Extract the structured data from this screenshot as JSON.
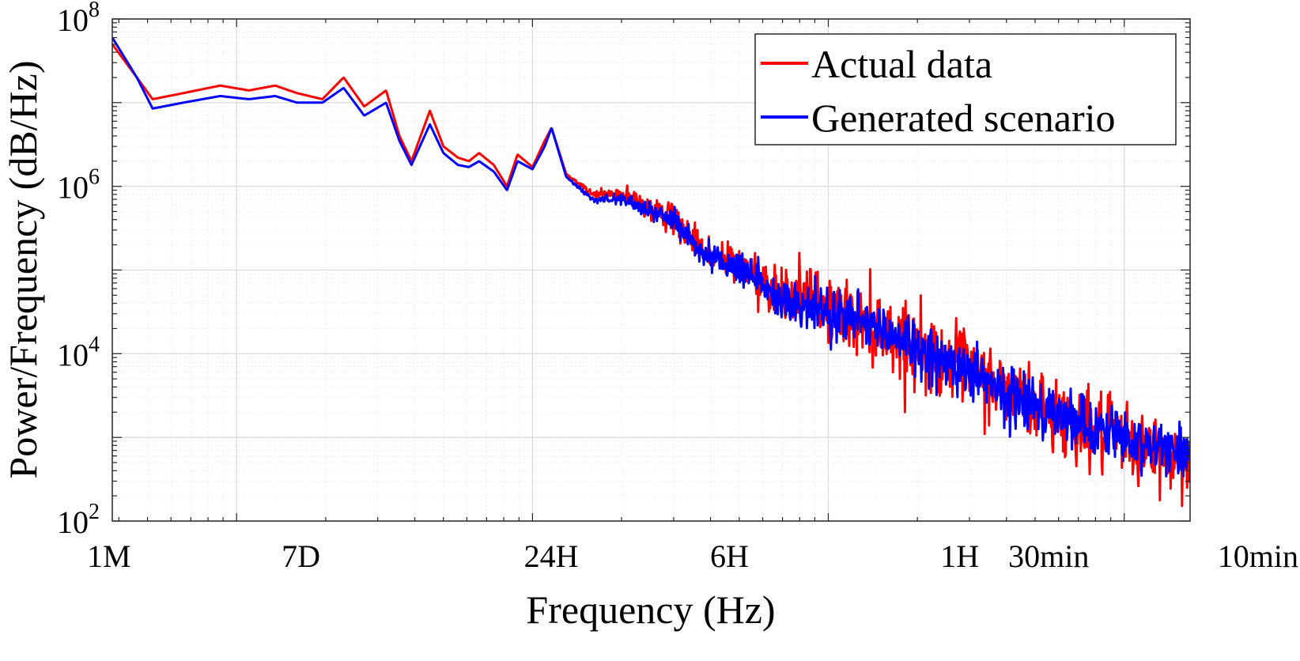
{
  "chart_data": {
    "type": "line",
    "title": "",
    "xlabel": "Frequency (Hz)",
    "ylabel": "Power/Frequency (dB/Hz)",
    "x_scale": "log",
    "y_scale": "log",
    "xlim": [
      3.8e-07,
      0.00167
    ],
    "ylim": [
      100,
      100000000
    ],
    "grid": true,
    "legend_position": "top-right",
    "x_ticks": [
      {
        "value": 3.8e-07,
        "label": "1M"
      },
      {
        "value": 1.65e-06,
        "label": "7D"
      },
      {
        "value": 1.157e-05,
        "label": "24H"
      },
      {
        "value": 4.63e-05,
        "label": "6H"
      },
      {
        "value": 0.000278,
        "label": "1H"
      },
      {
        "value": 0.000556,
        "label": "30min"
      },
      {
        "value": 0.001667,
        "label": "10min"
      }
    ],
    "y_ticks": [
      {
        "value": 100,
        "base": "10",
        "exp": "2"
      },
      {
        "value": 10000,
        "base": "10",
        "exp": "4"
      },
      {
        "value": 1000000,
        "base": "10",
        "exp": "6"
      },
      {
        "value": 100000000,
        "base": "10",
        "exp": "8"
      }
    ],
    "series": [
      {
        "name": "Actual data",
        "color": "#ff0000",
        "noise": 0.4,
        "x": [
          3.8e-07,
          4.6e-07,
          5.2e-07,
          6.6e-07,
          8.8e-07,
          1.1e-06,
          1.35e-06,
          1.6e-06,
          1.95e-06,
          2.3e-06,
          2.7e-06,
          3.2e-06,
          3.55e-06,
          3.9e-06,
          4.5e-06,
          5e-06,
          5.6e-06,
          6.1e-06,
          6.6e-06,
          7.4e-06,
          8.2e-06,
          8.9e-06,
          1e-05,
          1.1e-05,
          1.16e-05,
          1.3e-05,
          1.6e-05,
          2e-05,
          2.4e-05,
          3e-05,
          4e-05,
          5e-05,
          6.6e-05,
          0.0001,
          0.00015,
          0.00022,
          0.00029,
          0.0004,
          0.0006,
          0.0009,
          0.0013,
          0.001667
        ],
        "y": [
          50000000,
          20000000,
          11000000,
          13000000,
          16000000,
          14000000,
          16000000,
          13000000,
          11000000,
          20000000,
          9000000,
          14000000,
          4000000,
          2000000,
          8000000,
          3000000,
          2200000,
          2000000,
          2500000,
          1800000,
          1000000,
          2400000,
          1700000,
          3500000,
          5000000,
          1400000,
          800000,
          800000,
          600000,
          400000,
          150000,
          110000,
          60000,
          35000,
          20000,
          10000,
          7000,
          3500,
          1800,
          1000,
          650,
          550
        ]
      },
      {
        "name": "Generated scenario",
        "color": "#0000ff",
        "noise": 0.3,
        "x": [
          3.8e-07,
          4.6e-07,
          5.2e-07,
          6.6e-07,
          8.8e-07,
          1.1e-06,
          1.35e-06,
          1.6e-06,
          1.95e-06,
          2.3e-06,
          2.7e-06,
          3.2e-06,
          3.55e-06,
          3.9e-06,
          4.5e-06,
          5e-06,
          5.6e-06,
          6.1e-06,
          6.6e-06,
          7.4e-06,
          8.2e-06,
          8.9e-06,
          1e-05,
          1.1e-05,
          1.16e-05,
          1.3e-05,
          1.6e-05,
          2e-05,
          2.4e-05,
          3e-05,
          4e-05,
          5e-05,
          6.6e-05,
          0.0001,
          0.00015,
          0.00022,
          0.00029,
          0.0004,
          0.0006,
          0.0009,
          0.0013,
          0.001667
        ],
        "y": [
          60000000,
          20000000,
          8500000,
          10000000,
          12000000,
          11000000,
          12000000,
          10000000,
          10000000,
          15000000,
          7000000,
          10000000,
          3500000,
          1800000,
          5500000,
          2500000,
          1800000,
          1700000,
          2000000,
          1500000,
          900000,
          2000000,
          1600000,
          3000000,
          5000000,
          1300000,
          700000,
          700000,
          550000,
          380000,
          140000,
          100000,
          55000,
          32000,
          20000,
          10000,
          7000,
          3500,
          1800,
          1100,
          750,
          650
        ]
      }
    ]
  }
}
